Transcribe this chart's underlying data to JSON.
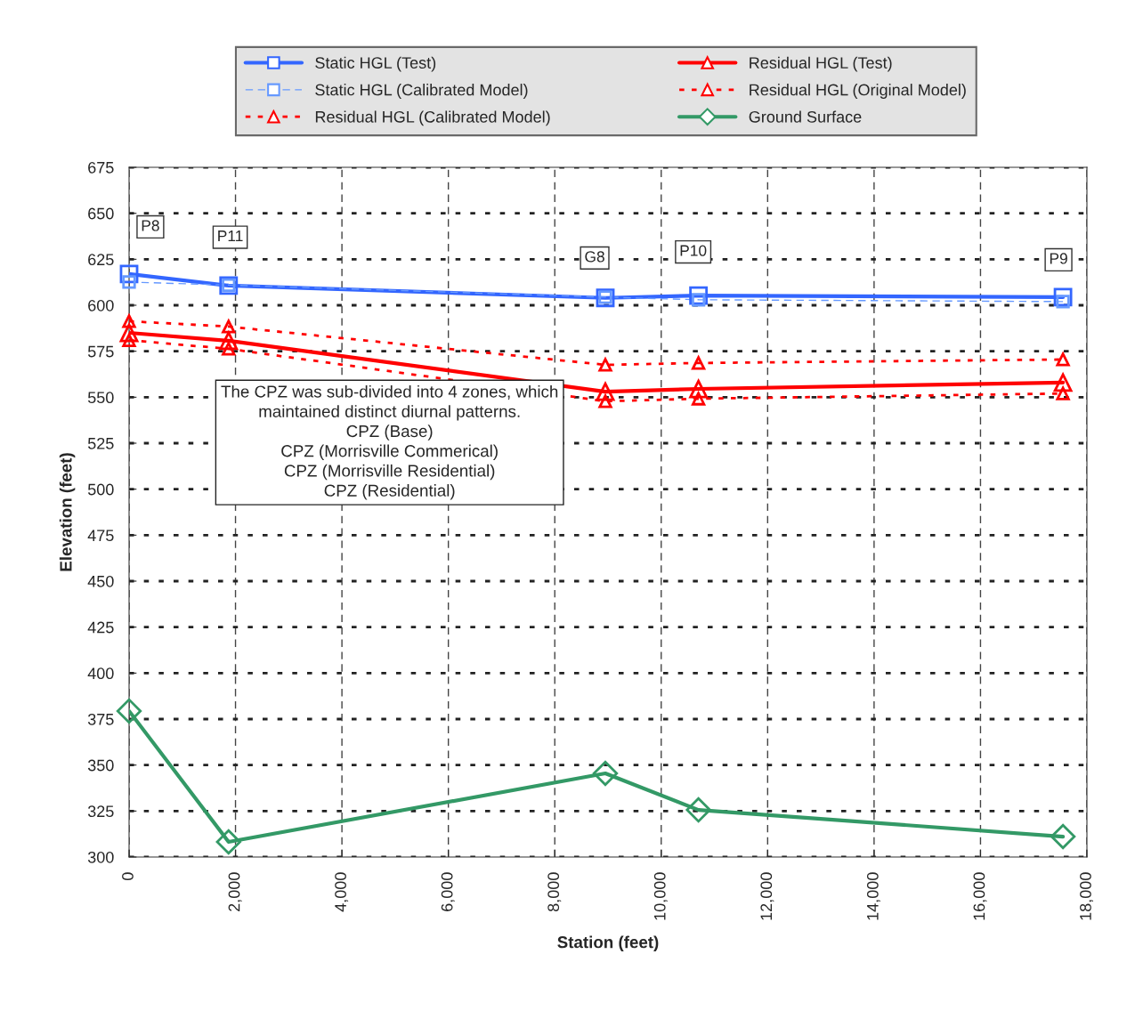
{
  "chart_data": {
    "type": "line",
    "xlabel": "Station (feet)",
    "ylabel": "Elevation (feet)",
    "xlim": [
      0,
      18000
    ],
    "ylim": [
      300,
      675
    ],
    "xticks": [
      0,
      {
        "value": 2000,
        "label": "2,000"
      },
      {
        "value": 4000,
        "label": "4,000"
      },
      {
        "value": 6000,
        "label": "6,000"
      },
      {
        "value": 8000,
        "label": "8,000"
      },
      {
        "value": 10000,
        "label": "10,000"
      },
      {
        "value": 12000,
        "label": "12,000"
      },
      {
        "value": 14000,
        "label": "14,000"
      },
      {
        "value": 16000,
        "label": "16,000"
      },
      {
        "value": 18000,
        "label": "18,000"
      }
    ],
    "yticks": [
      300,
      325,
      350,
      375,
      400,
      425,
      450,
      475,
      500,
      525,
      550,
      575,
      600,
      625,
      650,
      675
    ],
    "x": [
      0,
      1870,
      8950,
      10700,
      17550
    ],
    "grid": true,
    "legend": "top",
    "series": [
      {
        "name": "Static HGL (Test)",
        "color": "#3366ff",
        "marker": "square",
        "line_style": "solid",
        "values": [
          617,
          610.7,
          604,
          605.3,
          604.4
        ]
      },
      {
        "name": "Residual HGL (Test)",
        "color": "#ff0000",
        "marker": "triangle",
        "line_style": "solid",
        "values": [
          585,
          580.7,
          553,
          554.5,
          558
        ]
      },
      {
        "name": "Static HGL (Calibrated Model)",
        "color": "#6699ff",
        "marker": "square",
        "line_style": "dashed",
        "values": [
          612.6,
          611,
          604.4,
          603,
          602
        ]
      },
      {
        "name": "Residual HGL (Original Model)",
        "color": "#ff0000",
        "marker": "triangle",
        "line_style": "dotted",
        "values": [
          591.3,
          588.4,
          567.6,
          568.6,
          570.5
        ]
      },
      {
        "name": "Residual HGL (Calibrated Model)",
        "color": "#ff0000",
        "marker": "triangle",
        "line_style": "dotted",
        "values": [
          581,
          576.3,
          547.8,
          549.2,
          552
        ]
      },
      {
        "name": "Ground Surface",
        "color": "#339966",
        "marker": "diamond",
        "line_style": "solid",
        "values": [
          379.4,
          308.2,
          345.5,
          325.6,
          311.1
        ]
      }
    ],
    "annotations": [
      {
        "text": "P8",
        "x": 400,
        "y": 642.6
      },
      {
        "text": "P11",
        "x": 1900,
        "y": 637
      },
      {
        "text": "G8",
        "x": 8750,
        "y": 625.7
      },
      {
        "text": "P10",
        "x": 10600,
        "y": 629
      },
      {
        "text": "P9",
        "x": 17466,
        "y": 624.7
      },
      "The CPZ was sub-divided into 4 zones, which\nmaintained distinct diurnal patterns.\nCPZ (Base)\nCPZ (Morrisville Commerical)\nCPZ (Morrisville Residential)\nCPZ (Residential)"
    ]
  }
}
